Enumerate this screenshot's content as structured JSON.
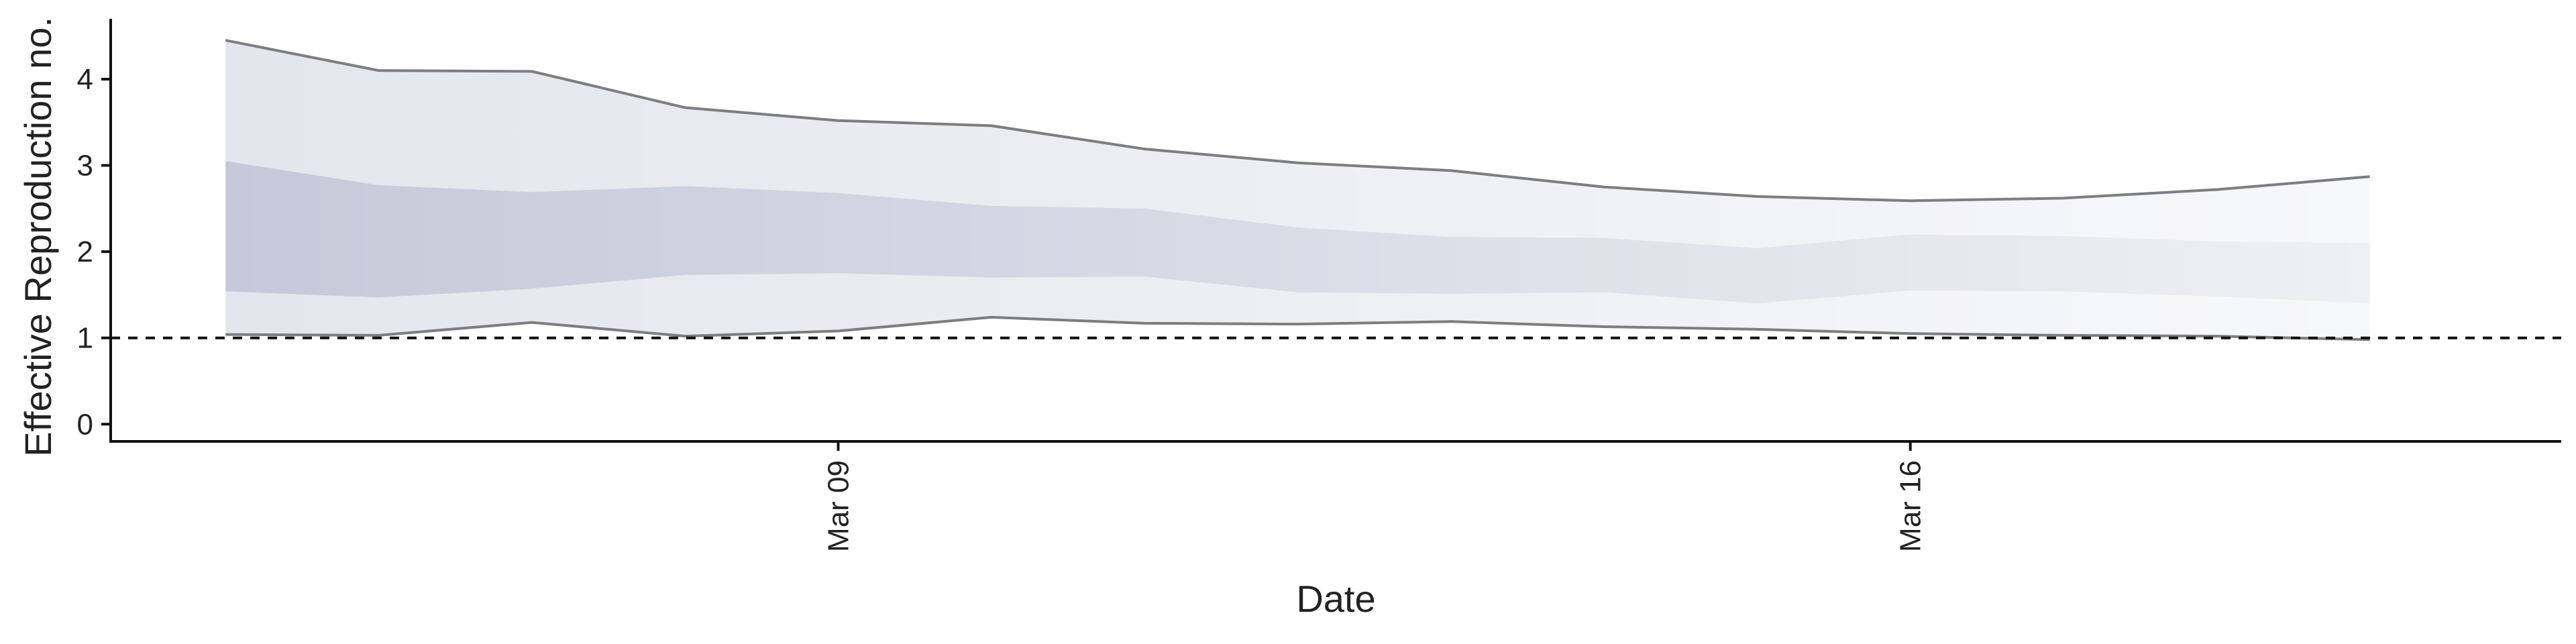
{
  "chart_data": {
    "type": "area",
    "title": "",
    "xlabel": "Date",
    "ylabel": "Effective Reproduction no.",
    "x": [
      "2020-03-05",
      "2020-03-06",
      "2020-03-07",
      "2020-03-08",
      "2020-03-09",
      "2020-03-10",
      "2020-03-11",
      "2020-03-12",
      "2020-03-13",
      "2020-03-14",
      "2020-03-15",
      "2020-03-16",
      "2020-03-17",
      "2020-03-18",
      "2020-03-19"
    ],
    "x_ticks": [
      {
        "date": "2020-03-09",
        "label": "Mar 09"
      },
      {
        "date": "2020-03-16",
        "label": "Mar 16"
      }
    ],
    "y_ticks": [
      0,
      1,
      2,
      3,
      4
    ],
    "ylim": [
      -0.2,
      4.7
    ],
    "xlim": [
      "2020-03-04 06:00",
      "2020-03-20 06:00"
    ],
    "reference_line": {
      "y": 1,
      "style": "dashed"
    },
    "series": [
      {
        "role": "upper_95",
        "values": [
          4.45,
          4.1,
          4.09,
          3.67,
          3.52,
          3.46,
          3.19,
          3.03,
          2.94,
          2.75,
          2.64,
          2.59,
          2.62,
          2.72,
          2.87
        ]
      },
      {
        "role": "upper_50",
        "values": [
          3.05,
          2.77,
          2.69,
          2.76,
          2.68,
          2.53,
          2.5,
          2.28,
          2.17,
          2.16,
          2.04,
          2.2,
          2.18,
          2.12,
          2.1
        ]
      },
      {
        "role": "lower_50",
        "values": [
          1.54,
          1.47,
          1.57,
          1.73,
          1.75,
          1.7,
          1.71,
          1.53,
          1.51,
          1.53,
          1.4,
          1.55,
          1.54,
          1.48,
          1.4
        ]
      },
      {
        "role": "lower_95",
        "values": [
          1.04,
          1.03,
          1.18,
          1.02,
          1.08,
          1.24,
          1.17,
          1.16,
          1.19,
          1.13,
          1.1,
          1.05,
          1.03,
          1.02,
          0.98
        ]
      }
    ],
    "colors": {
      "band_outer": "#e4e6ee",
      "band_inner": "#c5c9d9",
      "bound_line": "#7d7d82",
      "axis": "#111111",
      "reference": "#111111"
    },
    "grid": false,
    "legend": "none"
  }
}
